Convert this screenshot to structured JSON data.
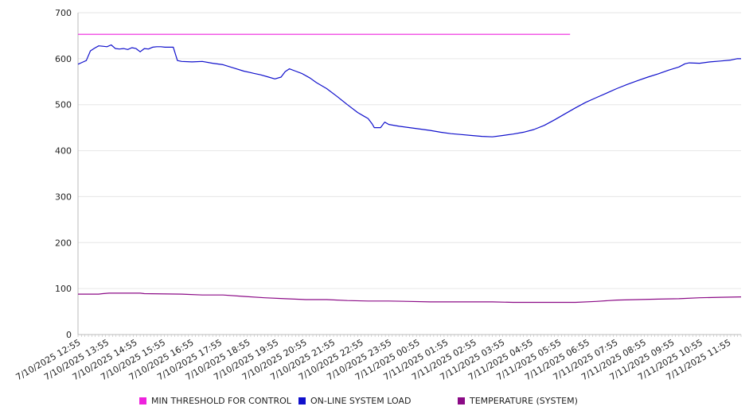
{
  "chart_data": {
    "type": "line",
    "title": "",
    "xlabel": "",
    "ylabel": "",
    "ylim": [
      0,
      700
    ],
    "yticks": [
      "0",
      "100",
      "200",
      "300",
      "400",
      "500",
      "600",
      "700"
    ],
    "grid": true,
    "legend_position": "bottom",
    "categories": [
      "7/10/2025 12:55",
      "7/10/2025 13:55",
      "7/10/2025 14:55",
      "7/10/2025 15:55",
      "7/10/2025 16:55",
      "7/10/2025 17:55",
      "7/10/2025 18:55",
      "7/10/2025 19:55",
      "7/10/2025 20:55",
      "7/10/2025 21:55",
      "7/10/2025 22:55",
      "7/10/2025 23:55",
      "7/11/2025 00:55",
      "7/11/2025 01:55",
      "7/11/2025 02:55",
      "7/11/2025 03:55",
      "7/11/2025 04:55",
      "7/11/2025 05:55",
      "7/11/2025 06:55",
      "7/11/2025 07:55",
      "7/11/2025 08:55",
      "7/11/2025 09:55",
      "7/11/2025 10:55",
      "7/11/2025 11:55"
    ],
    "x_hours": [
      0,
      23.75
    ],
    "series": [
      {
        "name": "MIN THRESHOLD FOR CONTROL",
        "color": "#ee22dd",
        "points": [
          [
            0,
            653
          ],
          [
            23.75,
            653
          ]
        ]
      },
      {
        "name": "ON-LINE SYSTEM LOAD",
        "color": "#1010cc",
        "points": [
          [
            0,
            588
          ],
          [
            0.2,
            592
          ],
          [
            0.4,
            596
          ],
          [
            0.6,
            617
          ],
          [
            0.8,
            623
          ],
          [
            1.0,
            628
          ],
          [
            1.2,
            627
          ],
          [
            1.4,
            626
          ],
          [
            1.6,
            630
          ],
          [
            1.8,
            622
          ],
          [
            2.0,
            621
          ],
          [
            2.2,
            622
          ],
          [
            2.4,
            620
          ],
          [
            2.6,
            624
          ],
          [
            2.8,
            622
          ],
          [
            3.0,
            615
          ],
          [
            3.2,
            622
          ],
          [
            3.4,
            621
          ],
          [
            3.6,
            625
          ],
          [
            3.8,
            626
          ],
          [
            4.0,
            626
          ],
          [
            4.2,
            625
          ],
          [
            4.4,
            625
          ],
          [
            4.6,
            625
          ],
          [
            4.8,
            596
          ],
          [
            5.0,
            594
          ],
          [
            5.5,
            593
          ],
          [
            6.0,
            594
          ],
          [
            6.5,
            590
          ],
          [
            7.0,
            587
          ],
          [
            7.5,
            580
          ],
          [
            8.0,
            573
          ],
          [
            8.3,
            570
          ],
          [
            8.5,
            568
          ],
          [
            8.8,
            565
          ],
          [
            9.2,
            560
          ],
          [
            9.5,
            556
          ],
          [
            9.8,
            560
          ],
          [
            10.0,
            572
          ],
          [
            10.2,
            578
          ],
          [
            10.5,
            573
          ],
          [
            10.8,
            568
          ],
          [
            11.2,
            558
          ],
          [
            11.5,
            548
          ],
          [
            12.0,
            535
          ],
          [
            12.5,
            518
          ],
          [
            13.0,
            500
          ],
          [
            13.5,
            483
          ],
          [
            13.8,
            475
          ],
          [
            14.0,
            470
          ],
          [
            14.2,
            458
          ],
          [
            14.3,
            450
          ],
          [
            14.6,
            450
          ],
          [
            14.8,
            462
          ],
          [
            15.0,
            457
          ],
          [
            15.5,
            453
          ],
          [
            16.0,
            450
          ],
          [
            16.5,
            447
          ],
          [
            17.0,
            444
          ],
          [
            17.5,
            440
          ],
          [
            18.0,
            437
          ],
          [
            18.5,
            435
          ],
          [
            19.0,
            433
          ],
          [
            19.5,
            431
          ],
          [
            20.0,
            430
          ],
          [
            20.5,
            433
          ],
          [
            21.0,
            436
          ],
          [
            21.5,
            440
          ],
          [
            22.0,
            446
          ],
          [
            22.5,
            455
          ],
          [
            23.0,
            467
          ],
          [
            23.5,
            480
          ],
          [
            24.0,
            493
          ],
          [
            24.5,
            505
          ],
          [
            25.0,
            515
          ],
          [
            25.5,
            525
          ],
          [
            26.0,
            535
          ],
          [
            26.5,
            544
          ],
          [
            27.0,
            552
          ],
          [
            27.5,
            560
          ],
          [
            28.0,
            567
          ],
          [
            28.5,
            575
          ],
          [
            29.0,
            582
          ],
          [
            29.3,
            589
          ],
          [
            29.5,
            591
          ],
          [
            30.0,
            590
          ],
          [
            30.5,
            593
          ],
          [
            31.0,
            595
          ],
          [
            31.5,
            597
          ],
          [
            31.8,
            600
          ],
          [
            32.0,
            600
          ]
        ]
      },
      {
        "name": "TEMPERATURE (SYSTEM)",
        "color": "#8b0a86",
        "points": [
          [
            0,
            88
          ],
          [
            1.0,
            88
          ],
          [
            1.2,
            89
          ],
          [
            1.5,
            90
          ],
          [
            3.0,
            90
          ],
          [
            3.2,
            89
          ],
          [
            5.0,
            88
          ],
          [
            6.0,
            86
          ],
          [
            7.0,
            86
          ],
          [
            8.0,
            83
          ],
          [
            9.0,
            80
          ],
          [
            10.0,
            78
          ],
          [
            11.0,
            76
          ],
          [
            12.0,
            76
          ],
          [
            13.0,
            74
          ],
          [
            14.0,
            73
          ],
          [
            15.0,
            73
          ],
          [
            16.0,
            72
          ],
          [
            17.0,
            71
          ],
          [
            18.0,
            71
          ],
          [
            19.0,
            71
          ],
          [
            20.0,
            71
          ],
          [
            21.0,
            70
          ],
          [
            22.0,
            70
          ],
          [
            23.0,
            70
          ],
          [
            24.0,
            70
          ],
          [
            25.0,
            72
          ],
          [
            26.0,
            75
          ],
          [
            27.0,
            76
          ],
          [
            28.0,
            77
          ],
          [
            29.0,
            78
          ],
          [
            30.0,
            80
          ],
          [
            31.0,
            81
          ],
          [
            32.0,
            82
          ]
        ]
      }
    ]
  }
}
